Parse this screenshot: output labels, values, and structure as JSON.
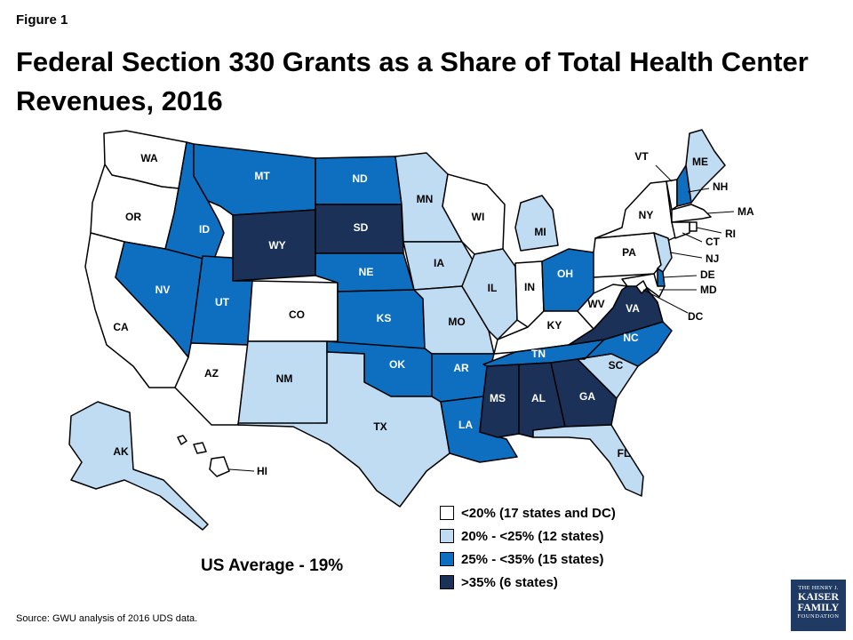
{
  "figure_label": "Figure 1",
  "title": "Federal Section 330 Grants as a Share of Total Health Center Revenues, 2016",
  "us_average": "US Average - 19%",
  "source": "Source: GWU analysis of 2016 UDS data.",
  "logo": {
    "line1": "THE HENRY J.",
    "line2": "KAISER",
    "line3": "FAMILY",
    "line4": "FOUNDATION"
  },
  "colors": {
    "under20": "#ffffff",
    "20to25": "#bfdcf2",
    "25to35": "#0e6fc0",
    "over35": "#1b3158"
  },
  "legend": [
    {
      "key": "under20",
      "label": "<20% (17 states and DC)"
    },
    {
      "key": "20to25",
      "label": "20% - <25% (12 states)"
    },
    {
      "key": "25to35",
      "label": "25% - <35% (15 states)"
    },
    {
      "key": "over35",
      "label": ">35%  (6 states)"
    }
  ],
  "states": {
    "WA": {
      "label": "WA",
      "category": "under20"
    },
    "OR": {
      "label": "OR",
      "category": "under20"
    },
    "CA": {
      "label": "CA",
      "category": "under20"
    },
    "NV": {
      "label": "NV",
      "category": "25to35"
    },
    "ID": {
      "label": "ID",
      "category": "25to35"
    },
    "MT": {
      "label": "MT",
      "category": "25to35"
    },
    "WY": {
      "label": "WY",
      "category": "over35"
    },
    "UT": {
      "label": "UT",
      "category": "25to35"
    },
    "AZ": {
      "label": "AZ",
      "category": "under20"
    },
    "CO": {
      "label": "CO",
      "category": "under20"
    },
    "NM": {
      "label": "NM",
      "category": "20to25"
    },
    "ND": {
      "label": "ND",
      "category": "25to35"
    },
    "SD": {
      "label": "SD",
      "category": "over35"
    },
    "NE": {
      "label": "NE",
      "category": "25to35"
    },
    "KS": {
      "label": "KS",
      "category": "25to35"
    },
    "OK": {
      "label": "OK",
      "category": "25to35"
    },
    "TX": {
      "label": "TX",
      "category": "20to25"
    },
    "MN": {
      "label": "MN",
      "category": "20to25"
    },
    "IA": {
      "label": "IA",
      "category": "20to25"
    },
    "MO": {
      "label": "MO",
      "category": "20to25"
    },
    "AR": {
      "label": "AR",
      "category": "25to35"
    },
    "LA": {
      "label": "LA",
      "category": "25to35"
    },
    "WI": {
      "label": "WI",
      "category": "under20"
    },
    "IL": {
      "label": "IL",
      "category": "20to25"
    },
    "MI": {
      "label": "MI",
      "category": "20to25"
    },
    "IN": {
      "label": "IN",
      "category": "under20"
    },
    "OH": {
      "label": "OH",
      "category": "25to35"
    },
    "KY": {
      "label": "KY",
      "category": "under20"
    },
    "TN": {
      "label": "TN",
      "category": "25to35"
    },
    "MS": {
      "label": "MS",
      "category": "over35"
    },
    "AL": {
      "label": "AL",
      "category": "over35"
    },
    "GA": {
      "label": "GA",
      "category": "over35"
    },
    "FL": {
      "label": "FL",
      "category": "20to25"
    },
    "SC": {
      "label": "SC",
      "category": "20to25"
    },
    "NC": {
      "label": "NC",
      "category": "25to35"
    },
    "VA": {
      "label": "VA",
      "category": "over35"
    },
    "WV": {
      "label": "WV",
      "category": "under20"
    },
    "PA": {
      "label": "PA",
      "category": "under20"
    },
    "NY": {
      "label": "NY",
      "category": "under20"
    },
    "VT": {
      "label": "VT",
      "category": "under20"
    },
    "NH": {
      "label": "NH",
      "category": "25to35"
    },
    "ME": {
      "label": "ME",
      "category": "20to25"
    },
    "MA": {
      "label": "MA",
      "category": "under20"
    },
    "RI": {
      "label": "RI",
      "category": "under20"
    },
    "CT": {
      "label": "CT",
      "category": "under20"
    },
    "NJ": {
      "label": "NJ",
      "category": "20to25"
    },
    "DE": {
      "label": "DE",
      "category": "25to35"
    },
    "MD": {
      "label": "MD",
      "category": "under20"
    },
    "DC": {
      "label": "DC",
      "category": "under20"
    },
    "AK": {
      "label": "AK",
      "category": "20to25"
    },
    "HI": {
      "label": "HI",
      "category": "under20"
    }
  }
}
